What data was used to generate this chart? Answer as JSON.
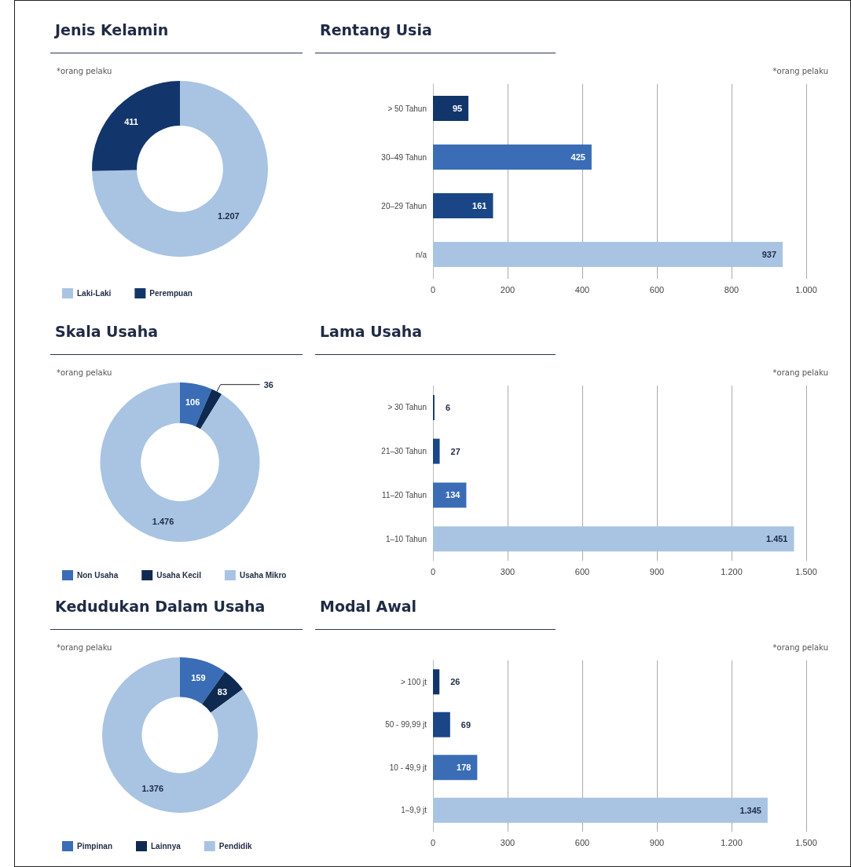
{
  "chart_data": [
    {
      "type": "donut",
      "title": "Jenis Kelamin",
      "categories": [
        "Laki-Laki",
        "Perempuan"
      ],
      "values": [
        1207,
        411
      ],
      "colors": [
        "#a9c4e2",
        "#12356b"
      ],
      "value_labels": [
        "1.207",
        "411"
      ],
      "legend": "bottom",
      "annotations": [
        "*orang pelaku"
      ]
    },
    {
      "type": "bar",
      "orientation": "horizontal",
      "title": "Rentang Usia",
      "categories": [
        "> 50 Tahun",
        "30–49 Tahun",
        "20–29 Tahun",
        "n/a"
      ],
      "values": [
        95,
        425,
        161,
        937
      ],
      "colors": [
        "#12356b",
        "#3a6db5",
        "#1a4687",
        "#a9c4e2"
      ],
      "value_labels": [
        "95",
        "425",
        "161",
        "937"
      ],
      "xlim": [
        0,
        1000
      ],
      "xticks": [
        0,
        200,
        400,
        600,
        800,
        {
          "value": 1000,
          "label": "1.000"
        }
      ],
      "grid": "x",
      "annotations": [
        "*orang pelaku"
      ]
    },
    {
      "type": "donut",
      "title": "Skala Usaha",
      "categories": [
        "Non Usaha",
        "Usaha Kecil",
        "Usaha Mikro"
      ],
      "values": [
        106,
        36,
        1476
      ],
      "colors": [
        "#3a6db5",
        "#0f2a50",
        "#a9c4e2"
      ],
      "value_labels": [
        "106",
        "36",
        "1.476"
      ],
      "legend": "bottom",
      "annotations": [
        "*orang pelaku"
      ]
    },
    {
      "type": "bar",
      "orientation": "horizontal",
      "title": "Lama Usaha",
      "categories": [
        "> 30 Tahun",
        "21–30 Tahun",
        "11–20 Tahun",
        "1–10 Tahun"
      ],
      "values": [
        6,
        27,
        134,
        1451
      ],
      "colors": [
        "#12356b",
        "#1a4687",
        "#3a6db5",
        "#a9c4e2"
      ],
      "value_labels": [
        "6",
        "27",
        "134",
        "1.451"
      ],
      "xlim": [
        0,
        1500
      ],
      "xticks": [
        0,
        300,
        600,
        900,
        {
          "value": 1200,
          "label": "1.200"
        },
        {
          "value": 1500,
          "label": "1.500"
        }
      ],
      "grid": "x",
      "annotations": [
        "*orang pelaku"
      ]
    },
    {
      "type": "donut",
      "title": "Kedudukan Dalam Usaha",
      "categories": [
        "Pimpinan",
        "Lainnya",
        "Pendidik"
      ],
      "values": [
        159,
        83,
        1376
      ],
      "colors": [
        "#3a6db5",
        "#0f2a50",
        "#a9c4e2"
      ],
      "value_labels": [
        "159",
        "83",
        "1.376"
      ],
      "legend": "bottom",
      "annotations": [
        "*orang pelaku"
      ]
    },
    {
      "type": "bar",
      "orientation": "horizontal",
      "title": "Modal Awal",
      "categories": [
        "> 100 jt",
        "50 - 99,99 jt",
        "10 - 49,9 jt",
        "1–9,9 jt"
      ],
      "values": [
        26,
        69,
        178,
        1345
      ],
      "colors": [
        "#12356b",
        "#1a4687",
        "#3a6db5",
        "#a9c4e2"
      ],
      "value_labels": [
        "26",
        "69",
        "178",
        "1.345"
      ],
      "xlim": [
        0,
        1500
      ],
      "xticks": [
        0,
        300,
        600,
        900,
        {
          "value": 1200,
          "label": "1.200"
        },
        {
          "value": 1500,
          "label": "1.500"
        }
      ],
      "grid": "x",
      "annotations": [
        "*orang pelaku"
      ]
    }
  ]
}
